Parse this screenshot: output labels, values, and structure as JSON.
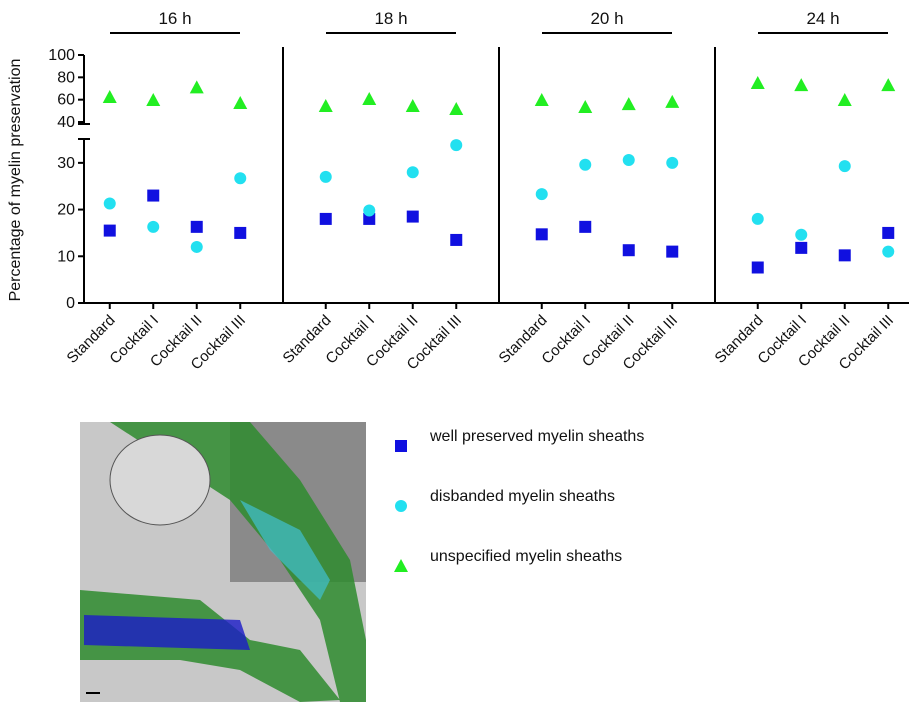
{
  "chart_data": {
    "type": "dot",
    "y_label": "Percentage of myelin preservation",
    "ylim_upper": [
      40,
      100
    ],
    "yticks_upper": [
      40,
      60,
      80,
      100
    ],
    "ylim_lower": [
      0,
      35
    ],
    "yticks_lower": [
      0,
      10,
      20,
      30
    ],
    "categories": [
      "Standard",
      "Cocktail I",
      "Cocktail II",
      "Cocktail III"
    ],
    "series": [
      {
        "name": "well preserved myelin sheaths",
        "color": "#1010e0",
        "marker": "square"
      },
      {
        "name": "disbanded myelin sheaths",
        "color": "#22e0f0",
        "marker": "circle"
      },
      {
        "name": "unspecified myelin sheaths",
        "color": "#22ee22",
        "marker": "triangle"
      }
    ],
    "panels": [
      {
        "title": "16 h",
        "series": [
          {
            "values": [
              15.5,
              23,
              16.3,
              15
            ]
          },
          {
            "values": [
              21.3,
              16.3,
              12,
              26.7
            ]
          },
          {
            "values": [
              62.4,
              59.7,
              71,
              57
            ]
          }
        ]
      },
      {
        "title": "18 h",
        "series": [
          {
            "values": [
              18,
              18,
              18.5,
              13.5
            ]
          },
          {
            "values": [
              27,
              19.8,
              28,
              33.8
            ]
          },
          {
            "values": [
              54.3,
              60.6,
              54.3,
              51.6
            ]
          }
        ]
      },
      {
        "title": "20 h",
        "series": [
          {
            "values": [
              14.7,
              16.3,
              11.3,
              11
            ]
          },
          {
            "values": [
              23.3,
              29.6,
              30.6,
              30
            ]
          },
          {
            "values": [
              59.7,
              53.4,
              56,
              58
            ]
          }
        ]
      },
      {
        "title": "24 h",
        "series": [
          {
            "values": [
              7.6,
              11.8,
              10.2,
              15
            ]
          },
          {
            "values": [
              18,
              14.6,
              29.3,
              11
            ]
          },
          {
            "values": [
              74.9,
              73,
              59.7,
              73
            ]
          }
        ]
      }
    ]
  }
}
